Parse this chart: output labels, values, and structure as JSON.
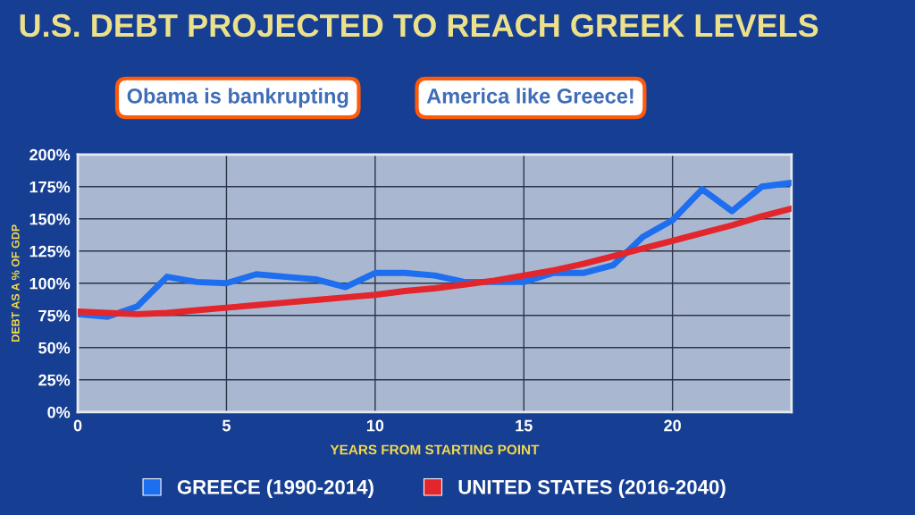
{
  "chart_data": {
    "type": "line",
    "title": "U.S. DEBT PROJECTED TO REACH GREEK LEVELS",
    "xlabel": "YEARS FROM STARTING POINT",
    "ylabel": "DEBT AS A % OF GDP",
    "annotations": [
      "Obama is bankrupting",
      "America like Greece!"
    ],
    "x": [
      0,
      1,
      2,
      3,
      4,
      5,
      6,
      7,
      8,
      9,
      10,
      11,
      12,
      13,
      14,
      15,
      16,
      17,
      18,
      19,
      20,
      21,
      22,
      23,
      24
    ],
    "series": [
      {
        "name": "GREECE (1990-2014)",
        "color": "#1e6ef0",
        "values": [
          76,
          74,
          82,
          105,
          101,
          100,
          107,
          105,
          103,
          97,
          108,
          108,
          106,
          101,
          101,
          101,
          108,
          108,
          114,
          136,
          149,
          173,
          156,
          175,
          178
        ]
      },
      {
        "name": "UNITED STATES (2016-2040)",
        "color": "#e3262b",
        "values": [
          78,
          77,
          76,
          77,
          79,
          81,
          83,
          85,
          87,
          89,
          91,
          94,
          96,
          99,
          102,
          106,
          110,
          115,
          121,
          127,
          133,
          139,
          145,
          152,
          158
        ]
      }
    ],
    "xlim": [
      0,
      24
    ],
    "ylim": [
      0,
      200
    ],
    "xticks": [
      0,
      5,
      10,
      15,
      20
    ],
    "yticks": [
      {
        "value": 0,
        "label": "0%"
      },
      {
        "value": 25,
        "label": "25%"
      },
      {
        "value": 50,
        "label": "50%"
      },
      {
        "value": 75,
        "label": "75%"
      },
      {
        "value": 100,
        "label": "100%"
      },
      {
        "value": 125,
        "label": "125%"
      },
      {
        "value": 150,
        "label": "150%"
      },
      {
        "value": 175,
        "label": "175%"
      },
      {
        "value": 200,
        "label": "200%"
      }
    ],
    "grid": true,
    "legend": "bottom",
    "marker": "none",
    "line_style": "solid"
  }
}
